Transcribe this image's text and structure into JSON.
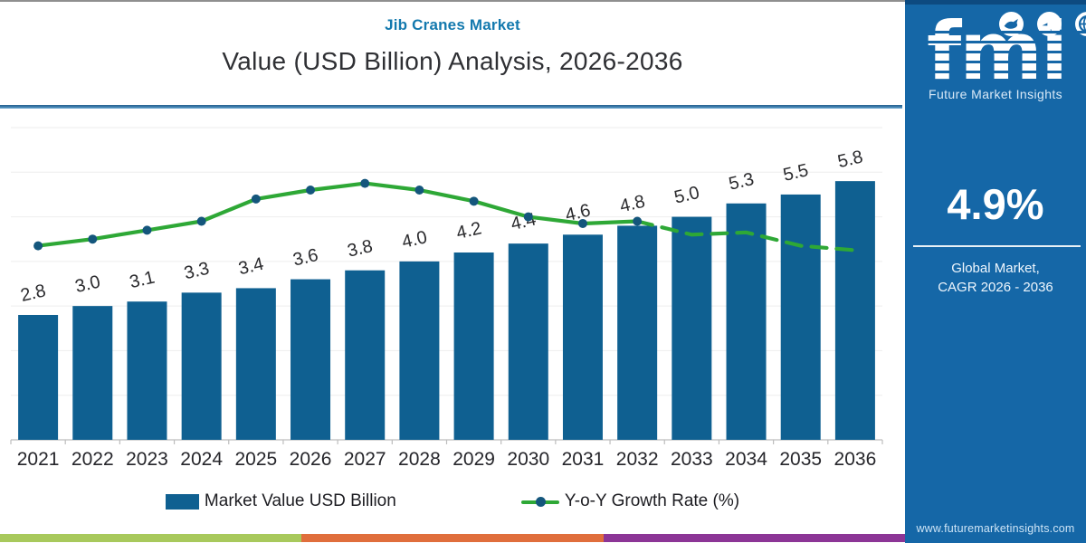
{
  "header": {
    "eyebrow": "Jib Cranes Market",
    "title": "Value (USD Billion) Analysis, 2026-2036"
  },
  "chart_data": {
    "type": "bar+line",
    "title": "Jib Cranes Market",
    "subtitle": "Value (USD Billion) Analysis, 2026-2036",
    "categories": [
      "2021",
      "2022",
      "2023",
      "2024",
      "2025",
      "2026",
      "2027",
      "2028",
      "2029",
      "2030",
      "2031",
      "2032",
      "2033",
      "2034",
      "2035",
      "2036"
    ],
    "series": [
      {
        "name": "Market Value USD Billion",
        "type": "bar",
        "color": "#0f6091",
        "values": [
          2.8,
          3.0,
          3.1,
          3.3,
          3.4,
          3.6,
          3.8,
          4.0,
          4.2,
          4.4,
          4.6,
          4.8,
          5.0,
          5.3,
          5.5,
          5.8
        ],
        "value_labels_shown": true,
        "value_label_format": "one decimal, above bar, slightly rotated"
      },
      {
        "name": "Y-o-Y Growth Rate (%)",
        "type": "line",
        "color": "#2ea836",
        "marker_color": "#14567c",
        "axis": "secondary (unlabeled, values estimated from pixel positions on 0-7 plot scale)",
        "values_plot_scale": [
          4.35,
          4.5,
          4.7,
          4.9,
          5.4,
          5.6,
          5.75,
          5.6,
          5.35,
          5.0,
          4.85,
          4.9,
          4.6,
          4.65,
          4.35,
          4.25
        ],
        "solid_with_markers_through": "2032",
        "dashed_without_markers_after": "2032"
      }
    ],
    "ylim": [
      0,
      7
    ],
    "grid": "faint horizontal gridlines, no y tick labels",
    "legend_position": "bottom center"
  },
  "legend": {
    "market_value_label": "Market Value USD Billion",
    "growth_rate_label": "Y-o-Y Growth Rate (%)"
  },
  "footer_strip": {
    "colors": [
      "#a8c95c",
      "#e06e3c",
      "#8c3596"
    ]
  },
  "sidebar": {
    "background": "#1567a7",
    "logo_text": "fmi",
    "logo_subtext": "Future Market Insights",
    "cagr_value": "4.9%",
    "cagr_label_line1": "Global Market,",
    "cagr_label_line2": "CAGR 2026 - 2036",
    "website": "www.futuremarketinsights.com"
  }
}
